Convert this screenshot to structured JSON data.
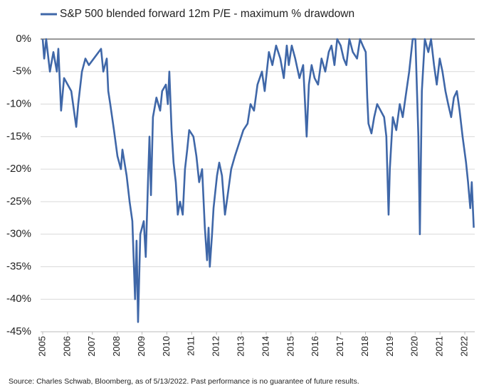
{
  "chart_data": {
    "type": "line",
    "source": "Source: Charles Schwab, Bloomberg, as of 5/13/2022. Past performance is no guarantee of future results.",
    "x": [
      2005.0,
      2005.06,
      2005.14,
      2005.29,
      2005.43,
      2005.57,
      2005.63,
      2005.74,
      2005.86,
      2006.15,
      2006.35,
      2006.43,
      2006.58,
      2006.72,
      2006.86,
      2007.35,
      2007.44,
      2007.58,
      2007.64,
      2007.72,
      2007.87,
      2008.01,
      2008.15,
      2008.21,
      2008.38,
      2008.5,
      2008.61,
      2008.72,
      2008.78,
      2008.84,
      2008.93,
      2009.07,
      2009.15,
      2009.24,
      2009.3,
      2009.36,
      2009.44,
      2009.58,
      2009.73,
      2009.81,
      2009.96,
      2010.04,
      2010.1,
      2010.19,
      2010.27,
      2010.36,
      2010.44,
      2010.53,
      2010.64,
      2010.73,
      2010.82,
      2010.9,
      2011.07,
      2011.19,
      2011.3,
      2011.42,
      2011.53,
      2011.62,
      2011.68,
      2011.73,
      2011.82,
      2011.88,
      2012.02,
      2012.11,
      2012.22,
      2012.34,
      2012.45,
      2012.59,
      2012.74,
      2012.91,
      2013.08,
      2013.25,
      2013.37,
      2013.51,
      2013.65,
      2013.83,
      2013.94,
      2014.11,
      2014.25,
      2014.4,
      2014.57,
      2014.71,
      2014.83,
      2014.91,
      2015.03,
      2015.17,
      2015.34,
      2015.49,
      2015.63,
      2015.72,
      2015.83,
      2015.95,
      2016.09,
      2016.23,
      2016.38,
      2016.52,
      2016.63,
      2016.75,
      2016.86,
      2017.0,
      2017.12,
      2017.23,
      2017.35,
      2017.49,
      2017.66,
      2017.78,
      2017.89,
      2018.01,
      2018.07,
      2018.12,
      2018.24,
      2018.35,
      2018.47,
      2018.61,
      2018.75,
      2018.84,
      2018.93,
      2018.98,
      2019.1,
      2019.24,
      2019.38,
      2019.5,
      2019.61,
      2019.76,
      2019.9,
      2020.01,
      2020.13,
      2020.19,
      2020.27,
      2020.39,
      2020.53,
      2020.64,
      2020.76,
      2020.87,
      2020.99,
      2021.1,
      2021.22,
      2021.33,
      2021.45,
      2021.56,
      2021.68,
      2021.79,
      2021.91,
      2022.05,
      2022.13,
      2022.22,
      2022.28,
      2022.36
    ],
    "series": [
      {
        "name": "S&P 500 blended forward 12m P/E - maximum % drawdown",
        "color": "#3f67a8",
        "values": [
          0,
          -3,
          0,
          -5,
          -2,
          -5,
          -1.5,
          -11,
          -6,
          -8,
          -13.5,
          -10,
          -5,
          -3,
          -4,
          -1.5,
          -5,
          -3,
          -8,
          -10,
          -14,
          -18,
          -20,
          -17,
          -21,
          -25,
          -28,
          -40,
          -31,
          -43.5,
          -30,
          -28,
          -33.5,
          -22,
          -15,
          -24,
          -12,
          -9,
          -11,
          -8,
          -7,
          -10,
          -5,
          -14,
          -19,
          -22,
          -27,
          -25,
          -27,
          -20,
          -17,
          -14,
          -15,
          -18,
          -22,
          -20,
          -29,
          -34,
          -29,
          -35,
          -30,
          -26,
          -21,
          -19,
          -21,
          -27,
          -24,
          -20,
          -18,
          -16,
          -14,
          -13,
          -10,
          -11,
          -7,
          -5,
          -8,
          -2,
          -4,
          -1,
          -3,
          -6,
          -1,
          -4,
          -1,
          -3,
          -6,
          -4,
          -15,
          -7,
          -4,
          -6,
          -7,
          -3,
          -5,
          -2,
          -1,
          -4,
          0,
          -1,
          -3,
          -4,
          0,
          -2,
          -3,
          0,
          -1,
          -2,
          -9,
          -13,
          -14.5,
          -12,
          -10,
          -11,
          -12,
          -15,
          -27,
          -20,
          -12,
          -14,
          -10,
          -12,
          -9,
          -5,
          0,
          0,
          -15,
          -30,
          -8,
          0,
          -2,
          0,
          -4,
          -7,
          -3,
          -5,
          -8,
          -10,
          -12,
          -9,
          -8,
          -11,
          -15,
          -19,
          -22,
          -26,
          -22,
          -29
        ]
      }
    ],
    "xlim": [
      2005,
      2022.4
    ],
    "xticks": [
      2005,
      2006,
      2007,
      2008,
      2009,
      2010,
      2011,
      2012,
      2013,
      2014,
      2015,
      2016,
      2017,
      2018,
      2019,
      2020,
      2021,
      2022
    ],
    "ylim": [
      -45,
      0
    ],
    "yticks": [
      {
        "value": 0,
        "label": "0%"
      },
      {
        "value": -5,
        "label": "-5%"
      },
      {
        "value": -10,
        "label": "-10%"
      },
      {
        "value": -15,
        "label": "-15%"
      },
      {
        "value": -20,
        "label": "-20%"
      },
      {
        "value": -25,
        "label": "-25%"
      },
      {
        "value": -30,
        "label": "-30%"
      },
      {
        "value": -35,
        "label": "-35%"
      },
      {
        "value": -40,
        "label": "-40%"
      },
      {
        "value": -45,
        "label": "-45%"
      }
    ],
    "grid": true,
    "legend": "top"
  }
}
